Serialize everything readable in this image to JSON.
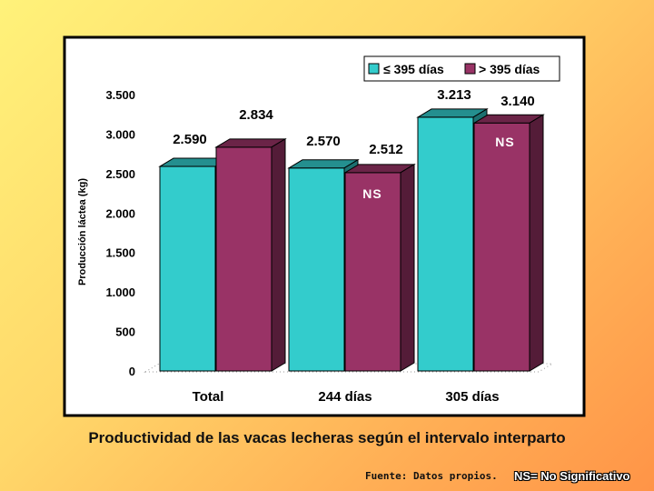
{
  "chart_data": {
    "type": "bar",
    "title": "",
    "xlabel": "",
    "ylabel": "Producción láctea (kg)",
    "categories": [
      "Total",
      "244 días",
      "305 días"
    ],
    "series": [
      {
        "name": "≤ 395 días",
        "color": "#33cccc",
        "values": [
          2590,
          2570,
          3213
        ],
        "labels": [
          "2.590",
          "2.570",
          "3.213"
        ]
      },
      {
        "name": "> 395 días",
        "color": "#993366",
        "values": [
          2834,
          2512,
          3140
        ],
        "labels": [
          "2.834",
          "2.512",
          "3.140"
        ]
      }
    ],
    "yticks": [
      0,
      500,
      1000,
      1500,
      2000,
      2500,
      3000,
      3500
    ],
    "ytick_labels": [
      "0",
      "500",
      "1.000",
      "1.500",
      "2.000",
      "2.500",
      "3.000",
      "3.500"
    ],
    "ylim": [
      0,
      3500
    ],
    "legend": "top-right",
    "grid": false,
    "annotations": [
      {
        "text": "NS",
        "category": "244 días"
      },
      {
        "text": "NS",
        "category": "305 días"
      }
    ]
  },
  "caption": "Productividad de las vacas lecheras según el intervalo interparto",
  "source": "Fuente: Datos propios.",
  "ns_note": "NS= No Significativo"
}
